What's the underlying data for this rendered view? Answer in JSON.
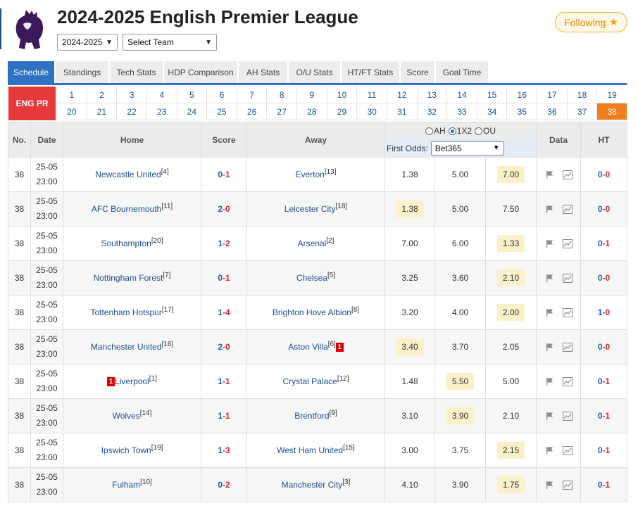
{
  "header": {
    "title": "2024-2025 English Premier League",
    "season_select": "2024-2025",
    "team_select": "Select Team",
    "follow_label": "Following"
  },
  "tabs": [
    "Schedule",
    "Standings",
    "Tech Stats",
    "HDP Comparison",
    "AH Stats",
    "O/U Stats",
    "HT/FT Stats",
    "Score",
    "Goal Time"
  ],
  "league_badge": "ENG PR",
  "rounds": [
    "1",
    "2",
    "3",
    "4",
    "5",
    "6",
    "7",
    "8",
    "9",
    "10",
    "11",
    "12",
    "13",
    "14",
    "15",
    "16",
    "17",
    "18",
    "19",
    "20",
    "21",
    "22",
    "23",
    "24",
    "25",
    "26",
    "27",
    "28",
    "29",
    "30",
    "31",
    "32",
    "33",
    "34",
    "35",
    "36",
    "37",
    "38"
  ],
  "active_round": "38",
  "table": {
    "headers": {
      "no": "No.",
      "date": "Date",
      "home": "Home",
      "score": "Score",
      "away": "Away",
      "data": "Data",
      "ht": "HT"
    },
    "odds_modes": [
      "AH",
      "1X2",
      "OU"
    ],
    "odds_mode_selected": "1X2",
    "first_odds_label": "First Odds:",
    "company": "Bet365"
  },
  "matches": [
    {
      "round": "38",
      "date": "25-05",
      "time": "23:00",
      "home": "Newcastle United",
      "home_rank": "[4]",
      "home_red": "",
      "score_h": "0",
      "score_a": "1",
      "away": "Everton",
      "away_rank": "[13]",
      "away_red": "",
      "o1": "1.38",
      "ox": "5.00",
      "o2": "7.00",
      "hl": 2,
      "ht_h": "0",
      "ht_a": "0"
    },
    {
      "round": "38",
      "date": "25-05",
      "time": "23:00",
      "home": "AFC Bournemouth",
      "home_rank": "[11]",
      "home_red": "",
      "score_h": "2",
      "score_a": "0",
      "away": "Leicester City",
      "away_rank": "[18]",
      "away_red": "",
      "o1": "1.38",
      "ox": "5.00",
      "o2": "7.50",
      "hl": 0,
      "ht_h": "0",
      "ht_a": "0"
    },
    {
      "round": "38",
      "date": "25-05",
      "time": "23:00",
      "home": "Southampton",
      "home_rank": "[20]",
      "home_red": "",
      "score_h": "1",
      "score_a": "2",
      "away": "Arsenal",
      "away_rank": "[2]",
      "away_red": "",
      "o1": "7.00",
      "ox": "6.00",
      "o2": "1.33",
      "hl": 2,
      "ht_h": "0",
      "ht_a": "1"
    },
    {
      "round": "38",
      "date": "25-05",
      "time": "23:00",
      "home": "Nottingham Forest",
      "home_rank": "[7]",
      "home_red": "",
      "score_h": "0",
      "score_a": "1",
      "away": "Chelsea",
      "away_rank": "[5]",
      "away_red": "",
      "o1": "3.25",
      "ox": "3.60",
      "o2": "2.10",
      "hl": 2,
      "ht_h": "0",
      "ht_a": "0"
    },
    {
      "round": "38",
      "date": "25-05",
      "time": "23:00",
      "home": "Tottenham Hotspur",
      "home_rank": "[17]",
      "home_red": "",
      "score_h": "1",
      "score_a": "4",
      "away": "Brighton Hove Albion",
      "away_rank": "[8]",
      "away_red": "",
      "o1": "3.20",
      "ox": "4.00",
      "o2": "2.00",
      "hl": 2,
      "ht_h": "1",
      "ht_a": "0"
    },
    {
      "round": "38",
      "date": "25-05",
      "time": "23:00",
      "home": "Manchester United",
      "home_rank": "[16]",
      "home_red": "",
      "score_h": "2",
      "score_a": "0",
      "away": "Aston Villa",
      "away_rank": "[6]",
      "away_red": "1",
      "o1": "3.40",
      "ox": "3.70",
      "o2": "2.05",
      "hl": 0,
      "ht_h": "0",
      "ht_a": "0"
    },
    {
      "round": "38",
      "date": "25-05",
      "time": "23:00",
      "home": "Liverpool",
      "home_rank": "[1]",
      "home_red": "1",
      "score_h": "1",
      "score_a": "1",
      "away": "Crystal Palace",
      "away_rank": "[12]",
      "away_red": "",
      "o1": "1.48",
      "ox": "5.50",
      "o2": "5.00",
      "hl": 1,
      "ht_h": "0",
      "ht_a": "1"
    },
    {
      "round": "38",
      "date": "25-05",
      "time": "23:00",
      "home": "Wolves",
      "home_rank": "[14]",
      "home_red": "",
      "score_h": "1",
      "score_a": "1",
      "away": "Brentford",
      "away_rank": "[9]",
      "away_red": "",
      "o1": "3.10",
      "ox": "3.90",
      "o2": "2.10",
      "hl": 1,
      "ht_h": "0",
      "ht_a": "1"
    },
    {
      "round": "38",
      "date": "25-05",
      "time": "23:00",
      "home": "Ipswich Town",
      "home_rank": "[19]",
      "home_red": "",
      "score_h": "1",
      "score_a": "3",
      "away": "West Ham United",
      "away_rank": "[15]",
      "away_red": "",
      "o1": "3.00",
      "ox": "3.75",
      "o2": "2.15",
      "hl": 2,
      "ht_h": "0",
      "ht_a": "1"
    },
    {
      "round": "38",
      "date": "25-05",
      "time": "23:00",
      "home": "Fulham",
      "home_rank": "[10]",
      "home_red": "",
      "score_h": "0",
      "score_a": "2",
      "away": "Manchester City",
      "away_rank": "[3]",
      "away_red": "",
      "o1": "4.10",
      "ox": "3.90",
      "o2": "1.75",
      "hl": 2,
      "ht_h": "0",
      "ht_a": "1"
    }
  ],
  "icons": {
    "league_logo": "premier-league-lion-icon",
    "flag": "flag-icon",
    "chart": "line-chart-icon",
    "follow": "star-icon"
  },
  "colors": {
    "accent_blue": "#2f71c2",
    "active_round": "#f07e1e",
    "league_badge": "#e63a3a",
    "home_score": "#1d5fc0",
    "away_score": "#d0282e",
    "odds_highlight": "#fcf0c8"
  }
}
